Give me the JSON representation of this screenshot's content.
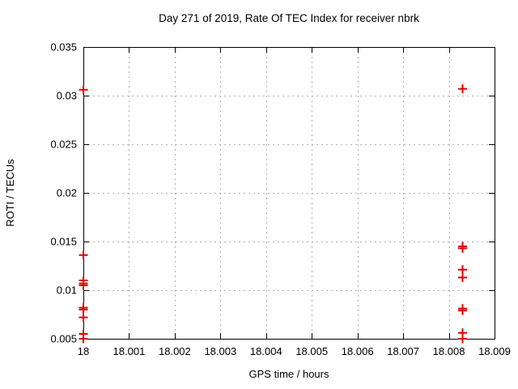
{
  "chart_data": {
    "type": "scatter",
    "title": "Day 271 of 2019, Rate Of TEC Index for receiver nbrk",
    "xlabel": "GPS time / hours",
    "ylabel": "ROTI / TECUs",
    "xlim": [
      18,
      18.009
    ],
    "ylim": [
      0.005,
      0.035
    ],
    "xtick_labels": [
      "18",
      "18.001",
      "18.002",
      "18.003",
      "18.004",
      "18.005",
      "18.006",
      "18.007",
      "18.008",
      "18.009"
    ],
    "ytick_labels": [
      "0.005",
      "0.01",
      "0.015",
      "0.02",
      "0.025",
      "0.03",
      "0.035"
    ],
    "grid": true,
    "grid_style": "dotted",
    "legend_position": "none",
    "marker": "plus",
    "colors": {
      "marker": "#e00000",
      "grid": "#b0b0b0",
      "axis": "#000000",
      "text": "#000000",
      "background": "#ffffff"
    },
    "series": [
      {
        "name": "ROTI",
        "points": [
          [
            18.0,
            0.0306
          ],
          [
            18.0,
            0.0136
          ],
          [
            18.0,
            0.011
          ],
          [
            18.0,
            0.0107
          ],
          [
            18.0,
            0.0105
          ],
          [
            18.0,
            0.0082
          ],
          [
            18.0,
            0.008
          ],
          [
            18.0,
            0.0072
          ],
          [
            18.0,
            0.0055
          ],
          [
            18.0,
            0.005
          ],
          [
            18.0083,
            0.0307
          ],
          [
            18.0083,
            0.0145
          ],
          [
            18.0083,
            0.0143
          ],
          [
            18.0083,
            0.0121
          ],
          [
            18.0083,
            0.0113
          ],
          [
            18.0083,
            0.0081
          ],
          [
            18.0083,
            0.0079
          ],
          [
            18.0083,
            0.0056
          ],
          [
            18.0083,
            0.005
          ]
        ]
      }
    ]
  }
}
